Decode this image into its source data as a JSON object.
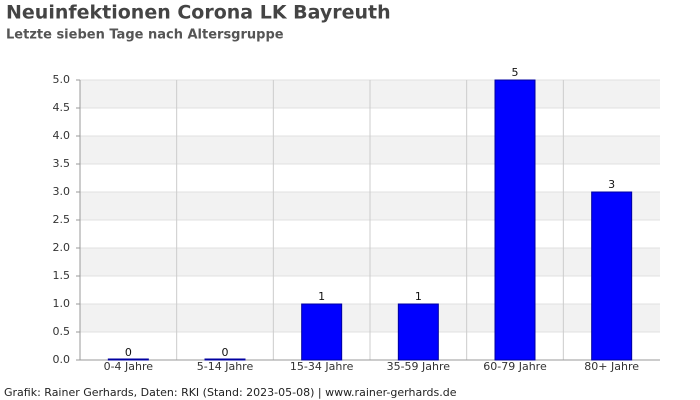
{
  "chart_data": {
    "type": "bar",
    "title": "Neuinfektionen Corona LK Bayreuth",
    "subtitle": "Letzte sieben Tage nach Altersgruppe",
    "footer": "Grafik: Rainer Gerhards, Daten: RKI (Stand: 2023-05-08) | www.rainer-gerhards.de",
    "categories": [
      "0-4 Jahre",
      "5-14 Jahre",
      "15-34 Jahre",
      "35-59 Jahre",
      "60-79 Jahre",
      "80+ Jahre"
    ],
    "values": [
      0,
      0,
      1,
      1,
      5,
      3
    ],
    "color": "#0000ff",
    "ylim": [
      0,
      5
    ],
    "yticks": [
      {
        "value": 0,
        "label": "0.0"
      },
      {
        "value": 0.5,
        "label": "0.5"
      },
      {
        "value": 1,
        "label": "1.0"
      },
      {
        "value": 1.5,
        "label": "1.5"
      },
      {
        "value": 2,
        "label": "2.0"
      },
      {
        "value": 2.5,
        "label": "2.5"
      },
      {
        "value": 3,
        "label": "3.0"
      },
      {
        "value": 3.5,
        "label": "3.5"
      },
      {
        "value": 4,
        "label": "4.0"
      },
      {
        "value": 4.5,
        "label": "4.5"
      },
      {
        "value": 5,
        "label": "5.0"
      }
    ],
    "grid": true
  }
}
